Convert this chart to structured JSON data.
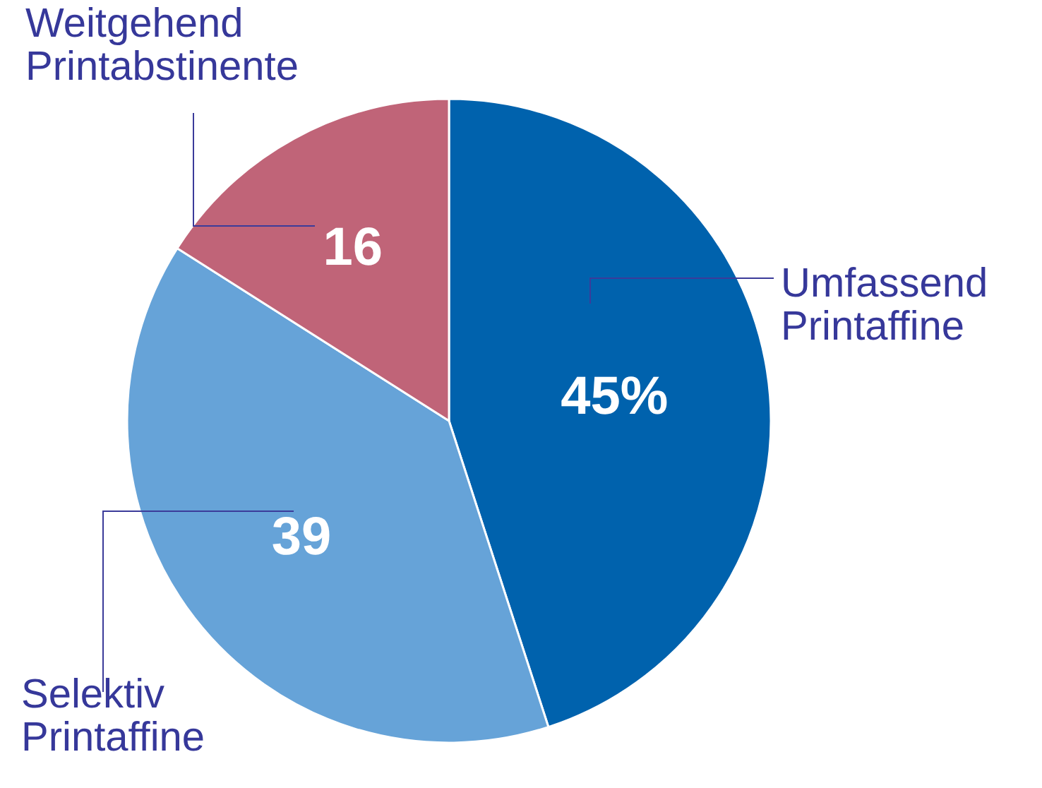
{
  "chart_data": {
    "type": "pie",
    "categories": [
      "Umfassend Printaffine",
      "Selektiv Printaffine",
      "Weitgehend Printabstinente"
    ],
    "values": [
      45,
      39,
      16
    ],
    "colors": [
      "#0062ad",
      "#66a3d8",
      "#c06478"
    ],
    "value_labels": [
      "45%",
      "39",
      "16"
    ]
  }
}
